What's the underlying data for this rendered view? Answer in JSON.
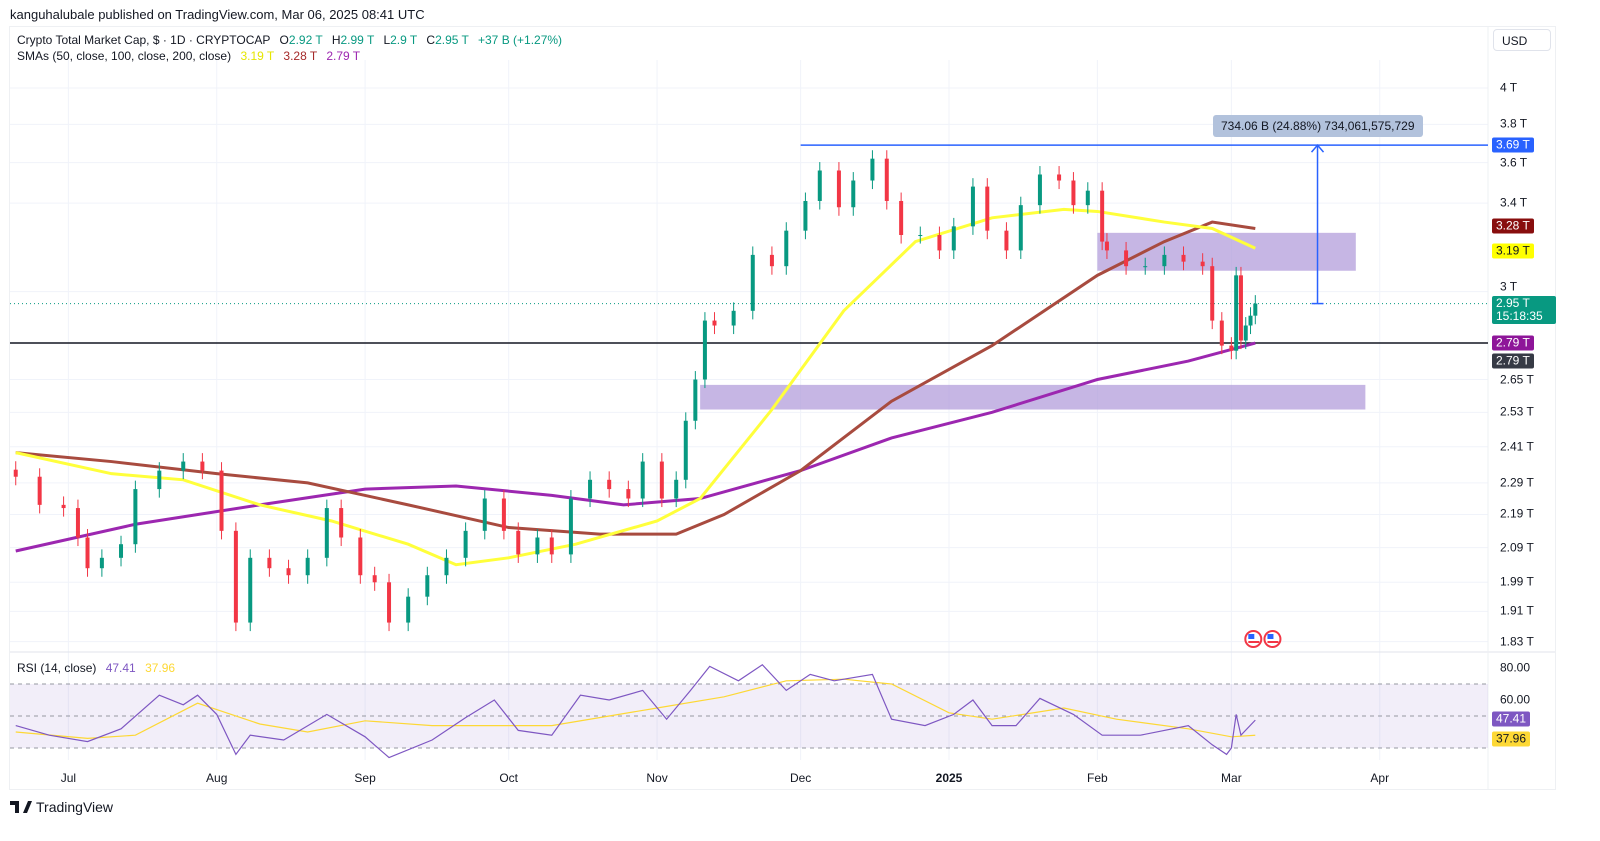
{
  "publisher_line": "kanguhalubale published on TradingView.com, Mar 06, 2025 08:41 UTC",
  "legend": {
    "symbol": "Crypto Total Market Cap, $ · 1D · CRYPTOCAP",
    "o_label": "O",
    "o": "2.92 T",
    "h_label": "H",
    "h": "2.99 T",
    "l_label": "L",
    "l": "2.9 T",
    "c_label": "C",
    "c": "2.95 T",
    "change": "+37 B (+1.27%)",
    "sma_label": "SMAs (50, close, 100, close, 200, close)",
    "sma50": "3.19 T",
    "sma100": "3.28 T",
    "sma200": "2.79 T",
    "rsi_label": "RSI (14, close)",
    "rsi": "47.41",
    "rsi_ma": "37.96"
  },
  "currency_button": "USD",
  "brand": "TradingView",
  "colors": {
    "up": "#089981",
    "down": "#f23645",
    "sma50": "#ffff3b",
    "sma100": "#a84b3f",
    "sma200": "#9c27b0",
    "rsi": "#7e57c2",
    "rsi_ma": "#fdd835",
    "hline_blue": "#2962ff",
    "zone": "#b39ddb"
  },
  "chart_data": [
    {
      "type": "candlestick",
      "title": "Crypto Total Market Cap",
      "scale": "log",
      "ylim_T": [
        1.8,
        4.25
      ],
      "y_ticks": [
        {
          "v": 4,
          "label": "4 T"
        },
        {
          "v": 3.8,
          "label": "3.8 T"
        },
        {
          "v": 3.6,
          "label": "3.6 T"
        },
        {
          "v": 3.4,
          "label": "3.4 T"
        },
        {
          "v": 3,
          "label": "3 T"
        },
        {
          "v": 2.65,
          "label": "2.65 T"
        },
        {
          "v": 2.53,
          "label": "2.53 T"
        },
        {
          "v": 2.41,
          "label": "2.41 T"
        },
        {
          "v": 2.29,
          "label": "2.29 T"
        },
        {
          "v": 2.19,
          "label": "2.19 T"
        },
        {
          "v": 2.09,
          "label": "2.09 T"
        },
        {
          "v": 1.99,
          "label": "1.99 T"
        },
        {
          "v": 1.91,
          "label": "1.91 T"
        },
        {
          "v": 1.83,
          "label": "1.83 T"
        }
      ],
      "x_ticks": [
        {
          "date": "2024-07-01",
          "label": "Jul"
        },
        {
          "date": "2024-08-01",
          "label": "Aug"
        },
        {
          "date": "2024-09-01",
          "label": "Sep"
        },
        {
          "date": "2024-10-01",
          "label": "Oct"
        },
        {
          "date": "2024-11-01",
          "label": "Nov"
        },
        {
          "date": "2024-12-01",
          "label": "Dec"
        },
        {
          "date": "2025-01-01",
          "label": "2025",
          "bold": true
        },
        {
          "date": "2025-02-01",
          "label": "Feb"
        },
        {
          "date": "2025-03-01",
          "label": "Mar"
        },
        {
          "date": "2025-04-01",
          "label": "Apr"
        }
      ],
      "closes_T": [
        [
          "2024-06-20",
          2.31
        ],
        [
          "2024-06-25",
          2.22
        ],
        [
          "2024-06-30",
          2.21
        ],
        [
          "2024-07-03",
          2.12
        ],
        [
          "2024-07-05",
          2.03
        ],
        [
          "2024-07-08",
          2.06
        ],
        [
          "2024-07-12",
          2.1
        ],
        [
          "2024-07-15",
          2.27
        ],
        [
          "2024-07-20",
          2.33
        ],
        [
          "2024-07-25",
          2.36
        ],
        [
          "2024-07-29",
          2.33
        ],
        [
          "2024-08-02",
          2.14
        ],
        [
          "2024-08-05",
          1.88
        ],
        [
          "2024-08-08",
          2.06
        ],
        [
          "2024-08-12",
          2.03
        ],
        [
          "2024-08-16",
          2.01
        ],
        [
          "2024-08-20",
          2.06
        ],
        [
          "2024-08-24",
          2.21
        ],
        [
          "2024-08-27",
          2.12
        ],
        [
          "2024-08-31",
          2.01
        ],
        [
          "2024-09-03",
          1.99
        ],
        [
          "2024-09-06",
          1.88
        ],
        [
          "2024-09-10",
          1.95
        ],
        [
          "2024-09-14",
          2.01
        ],
        [
          "2024-09-18",
          2.06
        ],
        [
          "2024-09-22",
          2.14
        ],
        [
          "2024-09-26",
          2.24
        ],
        [
          "2024-09-30",
          2.14
        ],
        [
          "2024-10-03",
          2.07
        ],
        [
          "2024-10-07",
          2.12
        ],
        [
          "2024-10-10",
          2.07
        ],
        [
          "2024-10-14",
          2.24
        ],
        [
          "2024-10-18",
          2.3
        ],
        [
          "2024-10-22",
          2.27
        ],
        [
          "2024-10-26",
          2.24
        ],
        [
          "2024-10-29",
          2.36
        ],
        [
          "2024-11-02",
          2.24
        ],
        [
          "2024-11-05",
          2.3
        ],
        [
          "2024-11-07",
          2.5
        ],
        [
          "2024-11-09",
          2.65
        ],
        [
          "2024-11-11",
          2.88
        ],
        [
          "2024-11-13",
          2.86
        ],
        [
          "2024-11-17",
          2.92
        ],
        [
          "2024-11-21",
          3.16
        ],
        [
          "2024-11-25",
          3.11
        ],
        [
          "2024-11-28",
          3.27
        ],
        [
          "2024-12-02",
          3.41
        ],
        [
          "2024-12-05",
          3.56
        ],
        [
          "2024-12-09",
          3.38
        ],
        [
          "2024-12-12",
          3.51
        ],
        [
          "2024-12-16",
          3.62
        ],
        [
          "2024-12-19",
          3.41
        ],
        [
          "2024-12-22",
          3.25
        ],
        [
          "2024-12-26",
          3.25
        ],
        [
          "2024-12-30",
          3.18
        ],
        [
          "2025-01-02",
          3.29
        ],
        [
          "2025-01-06",
          3.48
        ],
        [
          "2025-01-09",
          3.27
        ],
        [
          "2025-01-13",
          3.18
        ],
        [
          "2025-01-16",
          3.39
        ],
        [
          "2025-01-20",
          3.54
        ],
        [
          "2025-01-24",
          3.51
        ],
        [
          "2025-01-27",
          3.39
        ],
        [
          "2025-01-30",
          3.46
        ],
        [
          "2025-02-02",
          3.22
        ],
        [
          "2025-02-03",
          3.18
        ],
        [
          "2025-02-07",
          3.11
        ],
        [
          "2025-02-11",
          3.11
        ],
        [
          "2025-02-15",
          3.16
        ],
        [
          "2025-02-19",
          3.13
        ],
        [
          "2025-02-23",
          3.11
        ],
        [
          "2025-02-25",
          2.88
        ],
        [
          "2025-02-27",
          2.78
        ],
        [
          "2025-03-01",
          2.76
        ],
        [
          "2025-03-02",
          3.07
        ],
        [
          "2025-03-03",
          2.8
        ],
        [
          "2025-03-04",
          2.86
        ],
        [
          "2025-03-05",
          2.9
        ],
        [
          "2025-03-06",
          2.95
        ]
      ],
      "sma50_T": [
        [
          "2024-06-20",
          2.39
        ],
        [
          "2024-07-10",
          2.32
        ],
        [
          "2024-07-25",
          2.3
        ],
        [
          "2024-08-10",
          2.22
        ],
        [
          "2024-08-25",
          2.17
        ],
        [
          "2024-09-10",
          2.1
        ],
        [
          "2024-09-20",
          2.04
        ],
        [
          "2024-10-01",
          2.06
        ],
        [
          "2024-10-15",
          2.1
        ],
        [
          "2024-11-01",
          2.17
        ],
        [
          "2024-11-10",
          2.24
        ],
        [
          "2024-11-25",
          2.54
        ],
        [
          "2024-12-10",
          2.92
        ],
        [
          "2024-12-25",
          3.22
        ],
        [
          "2025-01-10",
          3.33
        ],
        [
          "2025-01-25",
          3.37
        ],
        [
          "2025-02-01",
          3.36
        ],
        [
          "2025-02-15",
          3.31
        ],
        [
          "2025-02-25",
          3.28
        ],
        [
          "2025-03-06",
          3.19
        ]
      ],
      "sma100_T": [
        [
          "2024-06-20",
          2.39
        ],
        [
          "2024-07-10",
          2.36
        ],
        [
          "2024-08-01",
          2.32
        ],
        [
          "2024-08-20",
          2.29
        ],
        [
          "2024-09-10",
          2.22
        ],
        [
          "2024-10-01",
          2.15
        ],
        [
          "2024-10-20",
          2.13
        ],
        [
          "2024-11-05",
          2.13
        ],
        [
          "2024-11-15",
          2.19
        ],
        [
          "2024-12-01",
          2.33
        ],
        [
          "2024-12-20",
          2.57
        ],
        [
          "2025-01-10",
          2.78
        ],
        [
          "2025-02-01",
          3.07
        ],
        [
          "2025-02-15",
          3.22
        ],
        [
          "2025-02-25",
          3.31
        ],
        [
          "2025-03-06",
          3.28
        ]
      ],
      "sma200_T": [
        [
          "2024-06-20",
          2.08
        ],
        [
          "2024-07-15",
          2.16
        ],
        [
          "2024-08-10",
          2.22
        ],
        [
          "2024-09-01",
          2.27
        ],
        [
          "2024-09-20",
          2.28
        ],
        [
          "2024-10-10",
          2.25
        ],
        [
          "2024-10-25",
          2.22
        ],
        [
          "2024-11-10",
          2.24
        ],
        [
          "2024-12-01",
          2.33
        ],
        [
          "2024-12-20",
          2.44
        ],
        [
          "2025-01-10",
          2.53
        ],
        [
          "2025-02-01",
          2.65
        ],
        [
          "2025-02-20",
          2.72
        ],
        [
          "2025-03-06",
          2.79
        ]
      ],
      "annotations": {
        "resistance_T": 3.69,
        "resistance_from": "2024-12-01",
        "support_T": 2.79,
        "upper_zone_T": [
          3.09,
          3.26
        ],
        "upper_zone_dates": [
          "2025-02-01",
          "2025-03-27"
        ],
        "lower_zone_T": [
          2.54,
          2.63
        ],
        "lower_zone_dates": [
          "2024-11-10",
          "2025-03-29"
        ],
        "measure": {
          "from_T": 2.95,
          "to_T": 3.69,
          "date": "2025-03-19",
          "label": "734.06 B (24.88%) 734,061,575,729"
        }
      },
      "price_tags": [
        {
          "v": 3.69,
          "label": "3.69 T",
          "bg": "#2962ff",
          "fg": "#ffffff"
        },
        {
          "v": 3.28,
          "label": "3.28 T",
          "bg": "#880e0e",
          "fg": "#ffffff"
        },
        {
          "v": 3.19,
          "label": "3.19 T",
          "bg": "#ffff00",
          "fg": "#131722"
        },
        {
          "v": 2.95,
          "label": "2.95 T",
          "sub": "15:18:35",
          "bg": "#089981",
          "fg": "#ffffff"
        },
        {
          "v": 2.79,
          "label": "2.79 T",
          "bg": "#8e1599",
          "fg": "#ffffff"
        },
        {
          "v": 2.79,
          "label": "2.79 T",
          "bg": "#363a45",
          "fg": "#ffffff",
          "offset": 1
        }
      ],
      "events": [
        {
          "date": "2025-03-06",
          "icon": "us-flag-icon"
        },
        {
          "date": "2025-03-10",
          "icon": "us-flag-icon"
        }
      ]
    },
    {
      "type": "line",
      "title": "RSI (14, close)",
      "ylim": [
        20,
        85
      ],
      "y_ticks": [
        {
          "v": 80,
          "label": "80.00"
        },
        {
          "v": 60,
          "label": "60.00"
        }
      ],
      "band": [
        30,
        70
      ],
      "rsi": [
        [
          "2024-06-20",
          44
        ],
        [
          "2024-06-27",
          38
        ],
        [
          "2024-07-05",
          34
        ],
        [
          "2024-07-12",
          42
        ],
        [
          "2024-07-20",
          63
        ],
        [
          "2024-07-25",
          57
        ],
        [
          "2024-07-28",
          63
        ],
        [
          "2024-08-01",
          51
        ],
        [
          "2024-08-05",
          26
        ],
        [
          "2024-08-08",
          38
        ],
        [
          "2024-08-15",
          35
        ],
        [
          "2024-08-24",
          51
        ],
        [
          "2024-09-01",
          37
        ],
        [
          "2024-09-06",
          24
        ],
        [
          "2024-09-15",
          35
        ],
        [
          "2024-09-22",
          49
        ],
        [
          "2024-09-28",
          60
        ],
        [
          "2024-10-03",
          41
        ],
        [
          "2024-10-10",
          38
        ],
        [
          "2024-10-16",
          63
        ],
        [
          "2024-10-22",
          60
        ],
        [
          "2024-10-29",
          66
        ],
        [
          "2024-11-03",
          48
        ],
        [
          "2024-11-08",
          66
        ],
        [
          "2024-11-12",
          81
        ],
        [
          "2024-11-18",
          72
        ],
        [
          "2024-11-23",
          82
        ],
        [
          "2024-11-28",
          66
        ],
        [
          "2024-12-03",
          76
        ],
        [
          "2024-12-08",
          72
        ],
        [
          "2024-12-16",
          76
        ],
        [
          "2024-12-20",
          48
        ],
        [
          "2024-12-27",
          44
        ],
        [
          "2025-01-02",
          51
        ],
        [
          "2025-01-06",
          60
        ],
        [
          "2025-01-10",
          44
        ],
        [
          "2025-01-15",
          44
        ],
        [
          "2025-01-20",
          61
        ],
        [
          "2025-01-27",
          51
        ],
        [
          "2025-02-02",
          38
        ],
        [
          "2025-02-10",
          38
        ],
        [
          "2025-02-20",
          44
        ],
        [
          "2025-02-25",
          32
        ],
        [
          "2025-02-28",
          26
        ],
        [
          "2025-03-01",
          30
        ],
        [
          "2025-03-02",
          51
        ],
        [
          "2025-03-03",
          38
        ],
        [
          "2025-03-06",
          47.41
        ]
      ],
      "rsi_ma": [
        [
          "2024-06-20",
          40
        ],
        [
          "2024-07-05",
          36
        ],
        [
          "2024-07-15",
          38
        ],
        [
          "2024-07-28",
          58
        ],
        [
          "2024-08-10",
          45
        ],
        [
          "2024-08-20",
          40
        ],
        [
          "2024-09-01",
          47
        ],
        [
          "2024-09-15",
          44
        ],
        [
          "2024-09-28",
          44
        ],
        [
          "2024-10-10",
          44
        ],
        [
          "2024-10-22",
          50
        ],
        [
          "2024-11-01",
          55
        ],
        [
          "2024-11-15",
          62
        ],
        [
          "2024-11-28",
          72
        ],
        [
          "2024-12-10",
          73
        ],
        [
          "2024-12-20",
          70
        ],
        [
          "2025-01-01",
          52
        ],
        [
          "2025-01-10",
          48
        ],
        [
          "2025-01-25",
          55
        ],
        [
          "2025-02-05",
          48
        ],
        [
          "2025-02-20",
          42
        ],
        [
          "2025-03-01",
          37
        ],
        [
          "2025-03-06",
          37.96
        ]
      ],
      "tags": [
        {
          "v": 47.41,
          "label": "47.41",
          "bg": "#7e57c2",
          "fg": "#ffffff"
        },
        {
          "v": 37.96,
          "label": "37.96",
          "bg": "#fdd835",
          "fg": "#131722"
        }
      ]
    }
  ]
}
